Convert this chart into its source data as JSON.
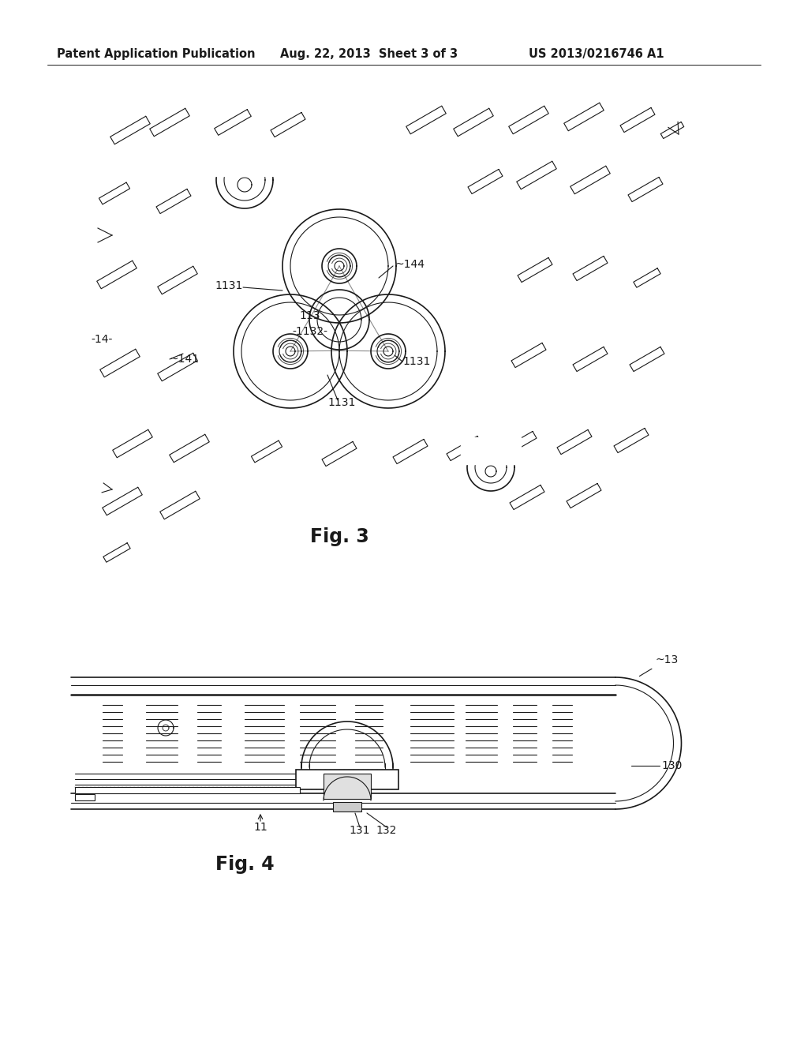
{
  "header_left": "Patent Application Publication",
  "header_mid": "Aug. 22, 2013  Sheet 3 of 3",
  "header_right": "US 2013/0216746 A1",
  "fig3_label": "Fig. 3",
  "fig4_label": "Fig. 4",
  "bg_color": "#ffffff",
  "line_color": "#1a1a1a",
  "header_fontsize": 10.5,
  "fig_label_fontsize": 17,
  "annotation_fontsize": 10
}
